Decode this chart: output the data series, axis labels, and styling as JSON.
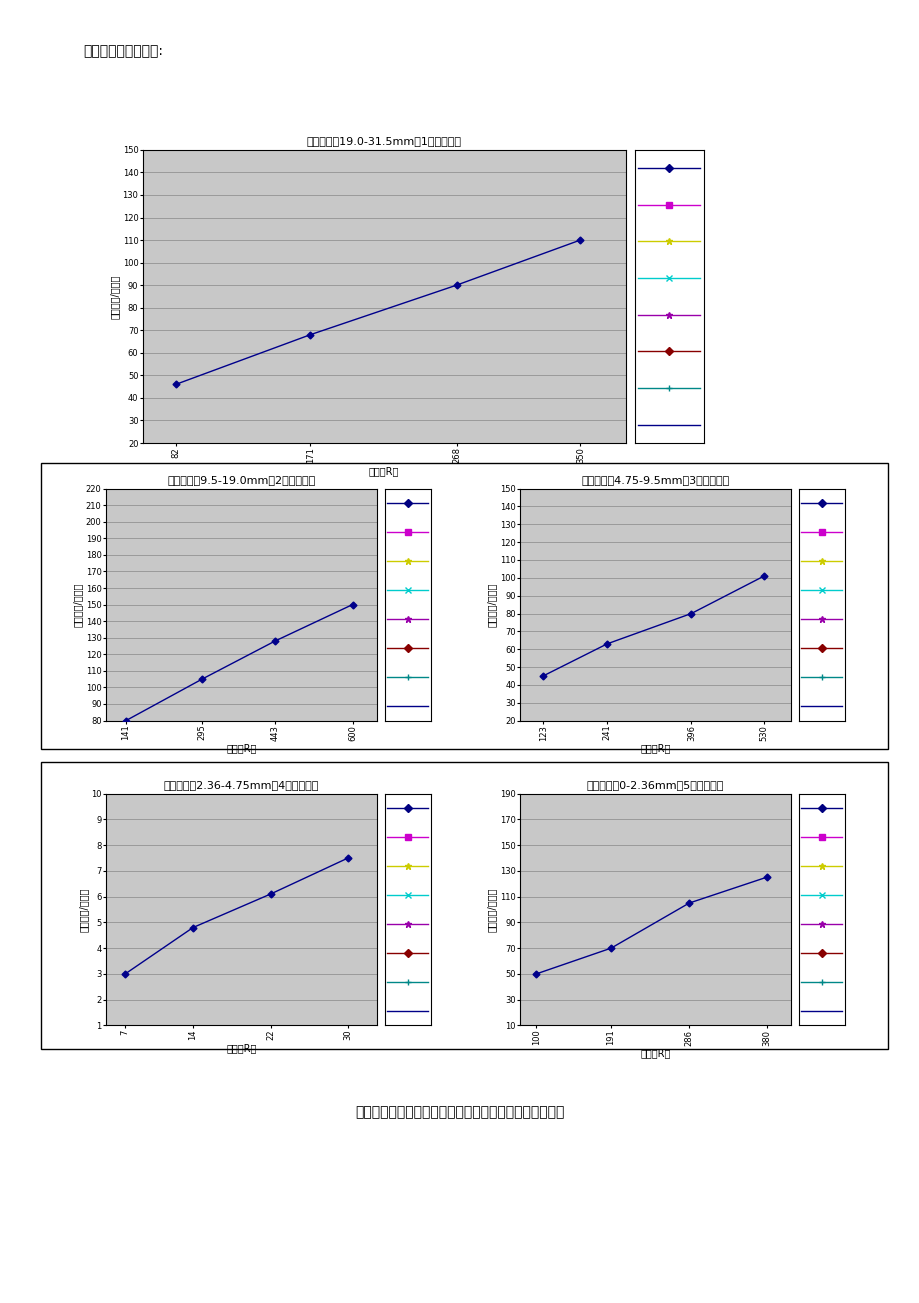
{
  "page_title": "骨料标定曲线如下图:",
  "bottom_caption": "水泥稳定碎石拌和站各料斗出料量与皮带转速的关系曲线",
  "chart1": {
    "title": "水稳拌合站19.0-31.5mm（1号料）标定",
    "xlabel": "转速（R）",
    "ylabel": "产量（吨/小时）",
    "xticks": [
      82,
      171,
      268,
      350
    ],
    "yticks": [
      20,
      30,
      40,
      50,
      60,
      70,
      80,
      90,
      100,
      110,
      120,
      130,
      140,
      150
    ],
    "ylim": [
      20,
      150
    ],
    "xlim": [
      60,
      380
    ],
    "x": [
      82,
      171,
      268,
      350
    ],
    "y": [
      46,
      68,
      90,
      110
    ],
    "line_color": "#00008B"
  },
  "chart2": {
    "title": "水稳拌合站9.5-19.0mm（2号料）标定",
    "xlabel": "转速（R）",
    "ylabel": "产量（吨/小时）",
    "xticks": [
      141,
      295,
      443,
      600
    ],
    "yticks": [
      80,
      90,
      100,
      110,
      120,
      130,
      140,
      150,
      160,
      170,
      180,
      190,
      200,
      210,
      220
    ],
    "ylim": [
      80,
      220
    ],
    "xlim": [
      100,
      650
    ],
    "x": [
      141,
      295,
      443,
      600
    ],
    "y": [
      80,
      105,
      128,
      150
    ],
    "line_color": "#00008B"
  },
  "chart3": {
    "title": "水稳拌合站4.75-9.5mm（3号料）标定",
    "xlabel": "转速（R）",
    "ylabel": "产量（吨/小时）",
    "xticks": [
      123,
      241,
      396,
      530
    ],
    "yticks": [
      20,
      30,
      40,
      50,
      60,
      70,
      80,
      90,
      100,
      110,
      120,
      130,
      140,
      150
    ],
    "ylim": [
      20,
      150
    ],
    "xlim": [
      80,
      580
    ],
    "x": [
      123,
      241,
      396,
      530
    ],
    "y": [
      45,
      63,
      80,
      101
    ],
    "line_color": "#00008B"
  },
  "chart4": {
    "title": "水稳拌合站2.36-4.75mm（4号料）标定",
    "xlabel": "转速（R）",
    "ylabel": "产量（吨/小时）",
    "xticks": [
      7,
      14,
      22,
      30
    ],
    "yticks": [
      1,
      2,
      3,
      4,
      5,
      6,
      7,
      8,
      9,
      10
    ],
    "ylim": [
      1,
      10
    ],
    "xlim": [
      5,
      33
    ],
    "x": [
      7,
      14,
      22,
      30
    ],
    "y": [
      3.0,
      4.8,
      6.1,
      7.5
    ],
    "line_color": "#00008B"
  },
  "chart5": {
    "title": "水稳拌合站0-2.36mm（5号料）标定",
    "xlabel": "转速（R）",
    "ylabel": "产量（吨/小时）",
    "xticks": [
      100,
      191,
      286,
      380
    ],
    "yticks": [
      10,
      30,
      50,
      70,
      90,
      110,
      130,
      150,
      170,
      190
    ],
    "ylim": [
      10,
      190
    ],
    "xlim": [
      80,
      410
    ],
    "x": [
      100,
      191,
      286,
      380
    ],
    "y": [
      50,
      70,
      105,
      125
    ],
    "line_color": "#00008B"
  },
  "legend_items": [
    {
      "color": "#000080",
      "marker": "D",
      "ls": "-"
    },
    {
      "color": "#CC00CC",
      "marker": "s",
      "ls": "-"
    },
    {
      "color": "#CCCC00",
      "marker": "*",
      "ls": "-"
    },
    {
      "color": "#00CCCC",
      "marker": "x",
      "ls": "-"
    },
    {
      "color": "#9900AA",
      "marker": "*",
      "ls": "-"
    },
    {
      "color": "#880000",
      "marker": "D",
      "ls": "-"
    },
    {
      "color": "#008888",
      "marker": "+",
      "ls": "-"
    },
    {
      "color": "#000088",
      "marker": "none",
      "ls": "-"
    }
  ],
  "plot_bg_color": "#C8C8C8",
  "grid_color": "#888888",
  "font_size_title": 8,
  "font_size_tick": 6,
  "font_size_label": 7
}
